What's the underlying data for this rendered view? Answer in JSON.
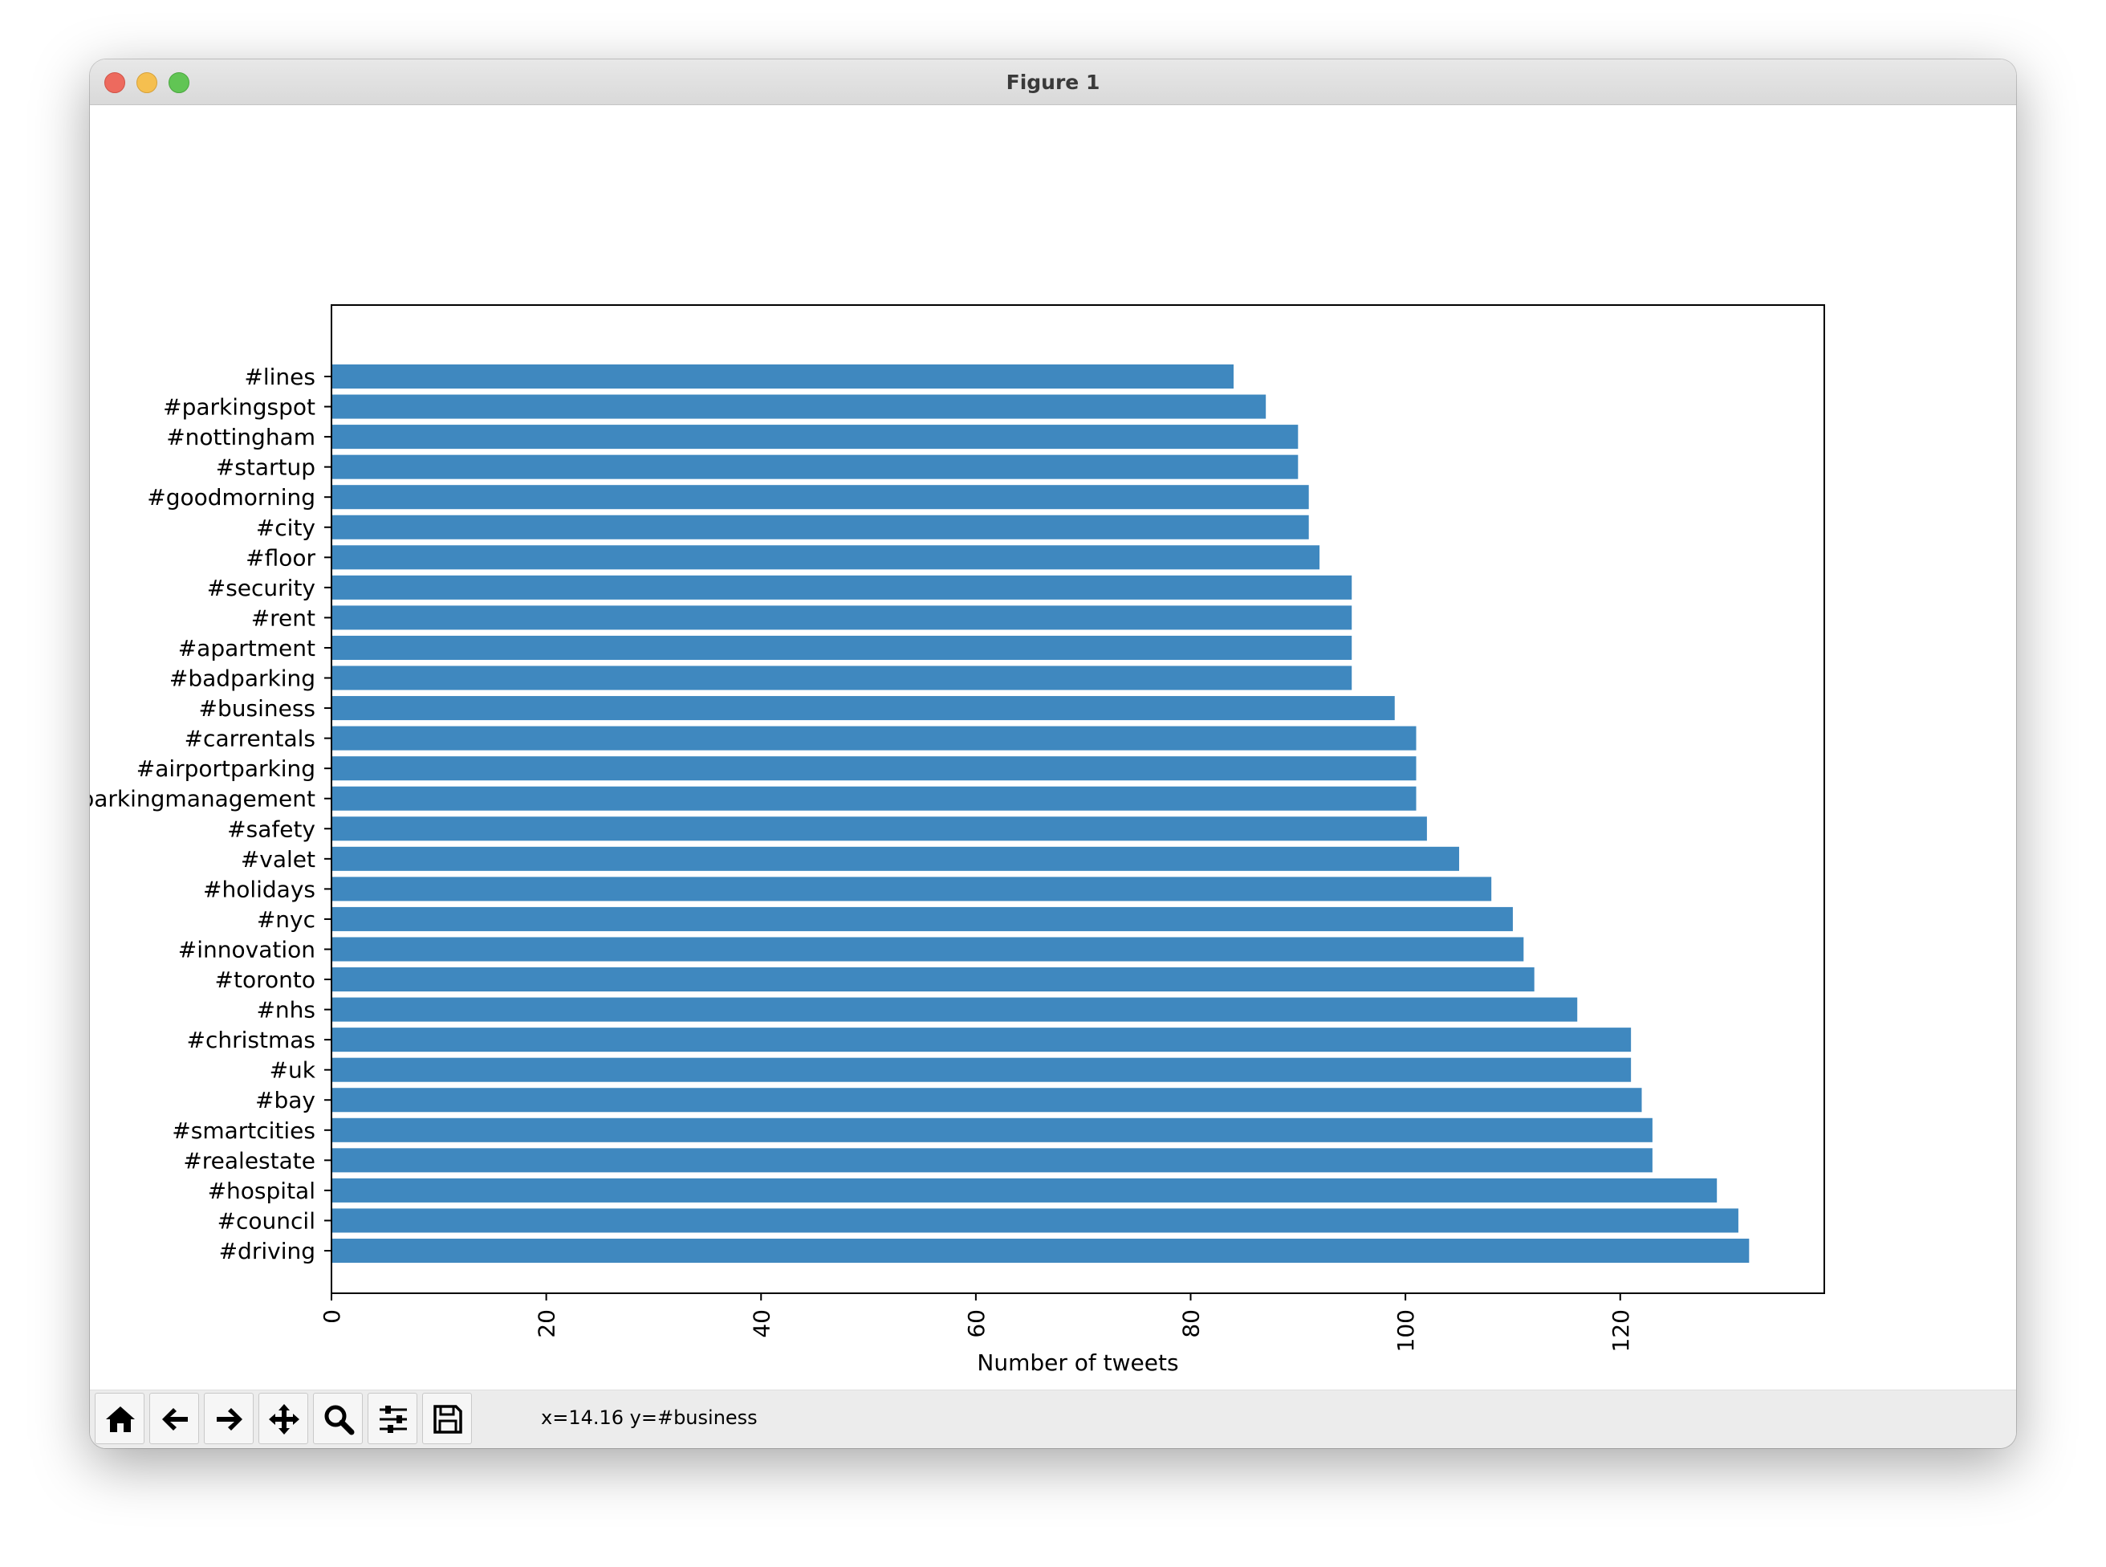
{
  "window": {
    "title": "Figure 1"
  },
  "toolbar": {
    "buttons": [
      {
        "name": "home-button",
        "icon": "home-icon"
      },
      {
        "name": "back-button",
        "icon": "arrow-left-icon"
      },
      {
        "name": "forward-button",
        "icon": "arrow-right-icon"
      },
      {
        "name": "pan-button",
        "icon": "move-icon"
      },
      {
        "name": "zoom-button",
        "icon": "magnifier-icon"
      },
      {
        "name": "configure-subplots-button",
        "icon": "sliders-icon"
      },
      {
        "name": "save-button",
        "icon": "floppy-disk-icon"
      }
    ],
    "status": "x=14.16 y=#business"
  },
  "colors": {
    "bar": "#3f88bf"
  },
  "chart_data": {
    "type": "bar",
    "orientation": "horizontal",
    "title": "",
    "xlabel": "Number of tweets",
    "ylabel": "",
    "xlim": [
      0,
      139
    ],
    "xticks": [
      0,
      20,
      40,
      60,
      80,
      100,
      120
    ],
    "categories": [
      "#driving",
      "#council",
      "#hospital",
      "#realestate",
      "#smartcities",
      "#bay",
      "#uk",
      "#christmas",
      "#nhs",
      "#toronto",
      "#innovation",
      "#nyc",
      "#holidays",
      "#valet",
      "#safety",
      "#parkingmanagement",
      "#airportparking",
      "#carrentals",
      "#business",
      "#badparking",
      "#apartment",
      "#rent",
      "#security",
      "#floor",
      "#city",
      "#goodmorning",
      "#startup",
      "#nottingham",
      "#parkingspot",
      "#lines"
    ],
    "values": [
      132,
      131,
      129,
      123,
      123,
      122,
      121,
      121,
      116,
      112,
      111,
      110,
      108,
      105,
      102,
      101,
      101,
      101,
      99,
      95,
      95,
      95,
      95,
      92,
      91,
      91,
      90,
      90,
      87,
      84
    ],
    "grid": false,
    "legend": "none"
  }
}
